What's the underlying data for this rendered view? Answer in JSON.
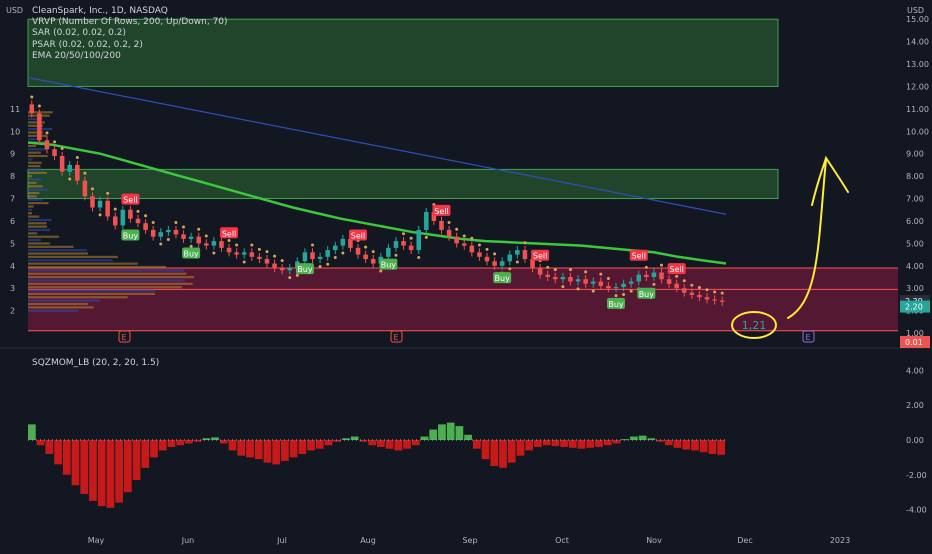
{
  "header": {
    "symbol_line": "CleanSpark, Inc., 1D, NASDAQ",
    "indicators": [
      "VRVP (Number Of Rows, 200, Up/Down, 70)",
      "SAR (0.02, 0.02, 0.2)",
      "PSAR (0.02, 0.02, 0.2, 2)",
      "EMA 20/50/100/200"
    ],
    "currency_left": "USD",
    "currency_right": "USD"
  },
  "oscillator": {
    "label": "SQZMOM_LB (20, 2, 20, 1.5)",
    "ticks": [
      "4.00",
      "2.00",
      "0.00",
      "-2.00",
      "-4.00"
    ]
  },
  "colors": {
    "background": "#131722",
    "up": "#26a69a",
    "down": "#ef5350",
    "ema200": "#3cc83c",
    "ema_long": "#2d4fb8",
    "sar": "#d9a35a",
    "support_zone": "#8c1a42",
    "resistance_zone": "#2e6b32",
    "annotation": "#ffeb3b"
  },
  "chart_data": {
    "type": "candlestick",
    "right_axis_ticks": [
      "15.00",
      "14.00",
      "13.00",
      "12.00",
      "11.00",
      "10.00",
      "9.00",
      "8.00",
      "7.00",
      "6.00",
      "5.00",
      "4.00",
      "3.00",
      "2.00",
      "1.00"
    ],
    "left_axis_ticks": [
      "11",
      "10",
      "9",
      "8",
      "7",
      "6",
      "5",
      "4",
      "3",
      "2"
    ],
    "x_ticks": [
      "May",
      "Jun",
      "Jul",
      "Aug",
      "Sep",
      "Oct",
      "Nov",
      "Dec",
      "2023"
    ],
    "price_labels": [
      {
        "text": "2.39",
        "color": "#2a2e39"
      },
      {
        "text": "2.20",
        "color": "#26a69a"
      },
      {
        "text": "0.01",
        "color": "#ef5350"
      }
    ],
    "ylim": [
      0.6,
      15.5
    ],
    "resistance_zones": [
      [
        12.0,
        15.0
      ],
      [
        7.0,
        8.3
      ]
    ],
    "support_zone": [
      1.1,
      3.9
    ],
    "horizontal_lines": [
      3.9,
      2.95,
      1.1
    ],
    "close_series": [
      10.8,
      9.6,
      9.2,
      8.9,
      8.2,
      8.5,
      7.8,
      7.1,
      6.6,
      6.9,
      6.2,
      5.8,
      6.5,
      6.1,
      5.9,
      5.6,
      5.3,
      5.5,
      5.6,
      5.4,
      5.2,
      5.3,
      5.0,
      4.9,
      5.1,
      4.8,
      4.6,
      4.5,
      4.6,
      4.4,
      4.3,
      4.1,
      3.9,
      3.8,
      3.9,
      4.2,
      4.6,
      4.3,
      4.4,
      4.7,
      4.9,
      5.2,
      4.8,
      4.5,
      4.3,
      4.1,
      4.4,
      4.8,
      5.1,
      4.9,
      4.7,
      5.6,
      6.4,
      6.0,
      5.6,
      5.3,
      5.0,
      4.9,
      4.6,
      4.4,
      4.2,
      4.0,
      4.2,
      4.5,
      4.7,
      4.3,
      3.9,
      3.6,
      3.5,
      3.4,
      3.5,
      3.3,
      3.4,
      3.2,
      3.3,
      3.1,
      3.0,
      3.05,
      3.2,
      3.3,
      3.6,
      3.5,
      3.7,
      3.4,
      3.2,
      3.0,
      2.8,
      2.7,
      2.6,
      2.5,
      2.45,
      2.39
    ],
    "ema200": [
      9.5,
      9.4,
      9.2,
      9.0,
      8.7,
      8.4,
      8.1,
      7.8,
      7.5,
      7.2,
      6.9,
      6.6,
      6.35,
      6.1,
      5.9,
      5.7,
      5.5,
      5.35,
      5.2,
      5.1,
      5.05,
      5.0,
      4.95,
      4.9,
      4.8,
      4.7,
      4.6,
      4.4,
      4.25,
      4.1
    ],
    "ema_long_line": [
      12.4,
      6.3
    ],
    "signals": [
      {
        "text": "Sell",
        "index": 13,
        "side": "sell"
      },
      {
        "text": "Buy",
        "index": 13,
        "side": "buy"
      },
      {
        "text": "Buy",
        "index": 21,
        "side": "buy"
      },
      {
        "text": "Sell",
        "index": 26,
        "side": "sell"
      },
      {
        "text": "Buy",
        "index": 36,
        "side": "buy"
      },
      {
        "text": "Sell",
        "index": 43,
        "side": "sell"
      },
      {
        "text": "Buy",
        "index": 47,
        "side": "buy"
      },
      {
        "text": "Sell",
        "index": 54,
        "side": "sell"
      },
      {
        "text": "Buy",
        "index": 62,
        "side": "buy"
      },
      {
        "text": "Sell",
        "index": 67,
        "side": "sell"
      },
      {
        "text": "Buy",
        "index": 77,
        "side": "buy"
      },
      {
        "text": "Sell",
        "index": 80,
        "side": "sell"
      },
      {
        "text": "Buy",
        "index": 81,
        "side": "buy"
      },
      {
        "text": "Sell",
        "index": 85,
        "side": "sell"
      }
    ],
    "annotation": {
      "text": "1,21"
    },
    "event_markers": [
      "E",
      "E",
      "E"
    ],
    "momentum": [
      0.9,
      -0.3,
      -0.8,
      -1.4,
      -2.0,
      -2.6,
      -3.1,
      -3.5,
      -3.8,
      -3.9,
      -3.6,
      -3.0,
      -2.3,
      -1.6,
      -1.0,
      -0.6,
      -0.4,
      -0.3,
      -0.2,
      -0.1,
      0.1,
      0.15,
      -0.2,
      -0.6,
      -0.9,
      -1.0,
      -1.1,
      -1.3,
      -1.4,
      -1.2,
      -1.0,
      -0.8,
      -0.6,
      -0.5,
      -0.3,
      -0.1,
      0.1,
      0.2,
      -0.1,
      -0.3,
      -0.4,
      -0.5,
      -0.6,
      -0.5,
      -0.3,
      0.2,
      0.6,
      0.9,
      1.0,
      0.8,
      0.3,
      -0.5,
      -1.1,
      -1.5,
      -1.6,
      -1.3,
      -0.9,
      -0.6,
      -0.4,
      -0.3,
      -0.35,
      -0.4,
      -0.45,
      -0.5,
      -0.45,
      -0.4,
      -0.3,
      -0.2,
      0.05,
      0.2,
      0.25,
      0.1,
      -0.1,
      -0.3,
      -0.45,
      -0.55,
      -0.6,
      -0.7,
      -0.8,
      -0.85
    ]
  }
}
